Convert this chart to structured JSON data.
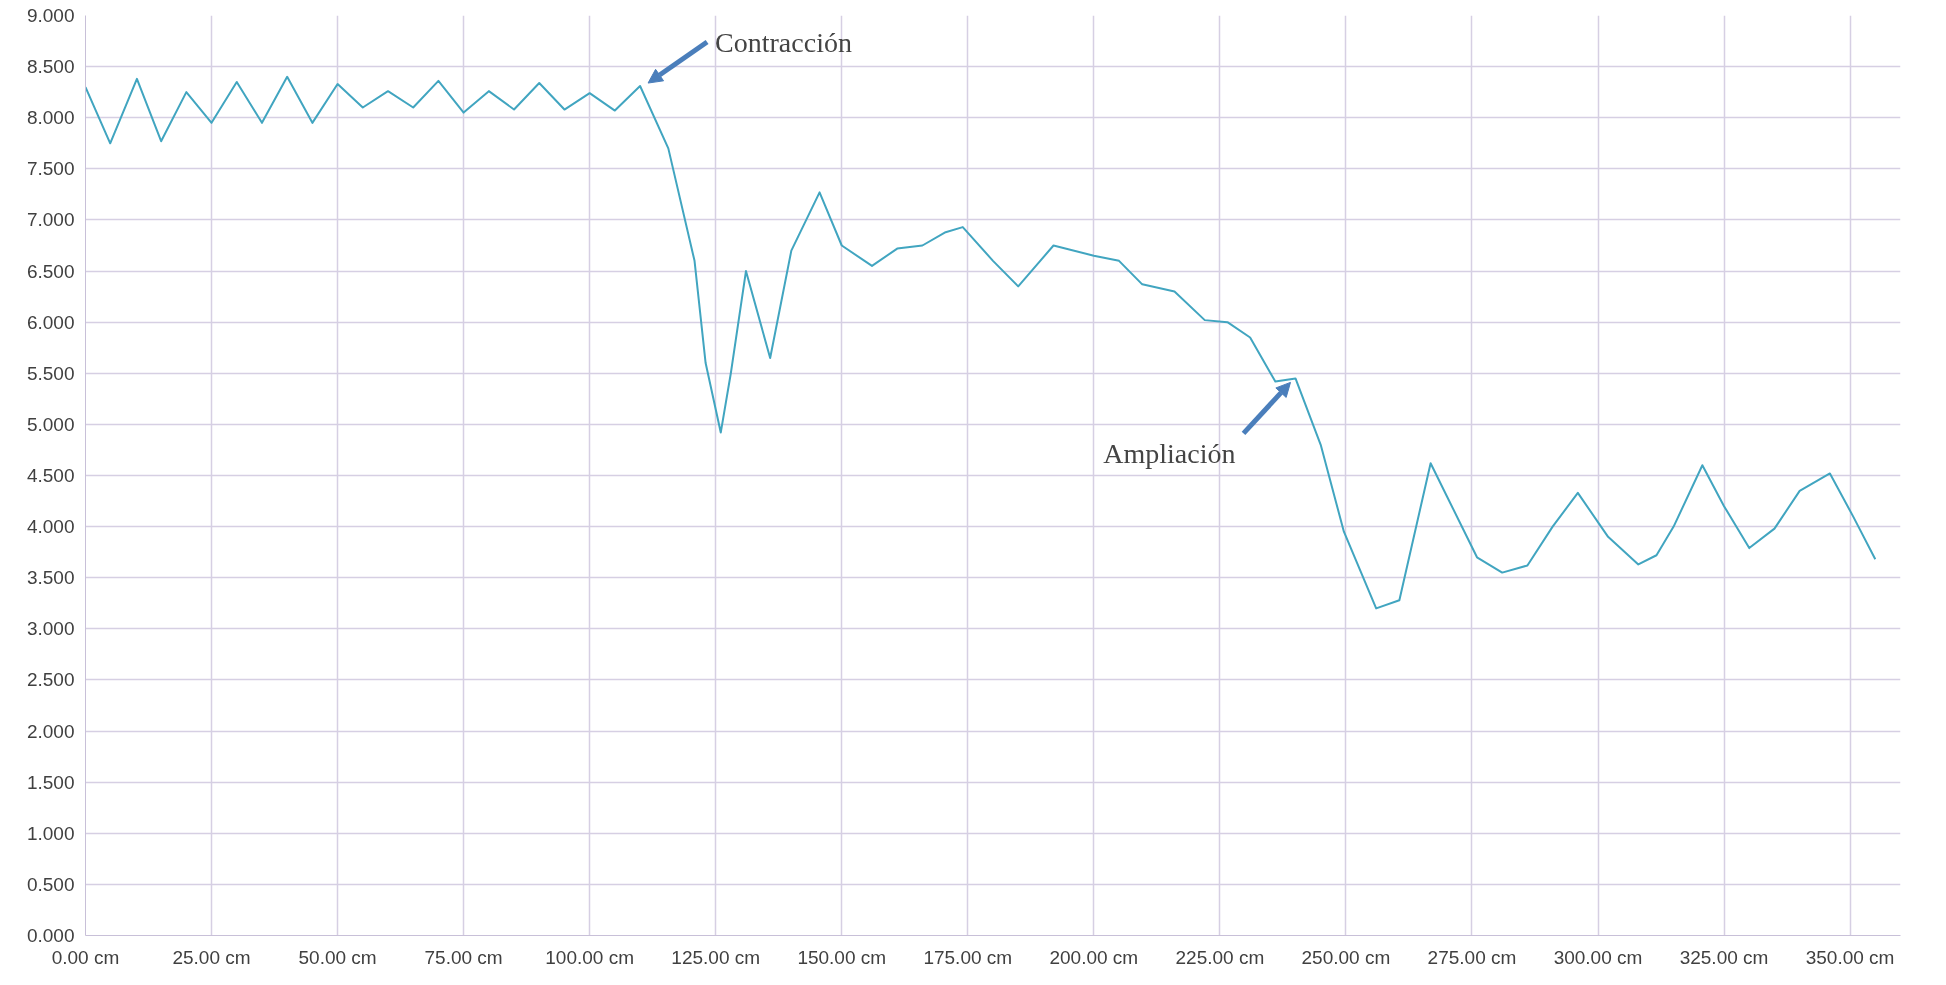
{
  "chart_data": {
    "type": "line",
    "x": [
      0,
      4.9,
      10.2,
      15,
      20,
      25,
      30,
      35,
      40,
      45,
      50,
      55,
      60,
      65,
      70,
      75,
      80,
      85,
      90,
      95,
      100,
      105,
      110,
      115.6,
      120.8,
      123,
      126,
      128,
      131,
      135.8,
      140,
      145.6,
      150,
      156,
      161,
      166,
      170.6,
      174,
      180,
      185,
      192,
      200,
      205,
      209.6,
      216,
      222,
      226.5,
      231,
      236,
      240,
      245,
      249.6,
      256,
      260.6,
      266.8,
      270,
      276,
      281,
      286,
      291,
      296,
      302,
      308,
      311.6,
      315,
      320.7,
      325,
      330,
      335,
      340,
      346,
      350.6,
      355
    ],
    "series": [
      {
        "color": "#41a5c0",
        "values": [
          8.3,
          7.75,
          8.38,
          7.77,
          8.25,
          7.95,
          8.35,
          7.95,
          8.4,
          7.95,
          8.33,
          8.1,
          8.26,
          8.1,
          8.36,
          8.05,
          8.26,
          8.08,
          8.34,
          8.08,
          8.24,
          8.07,
          8.31,
          7.7,
          6.6,
          5.6,
          4.92,
          5.5,
          6.5,
          5.65,
          6.7,
          7.27,
          6.75,
          6.55,
          6.72,
          6.75,
          6.88,
          6.93,
          6.6,
          6.35,
          6.75,
          6.65,
          6.6,
          6.37,
          6.3,
          6.02,
          6.0,
          5.85,
          5.42,
          5.45,
          4.8,
          3.95,
          3.2,
          3.28,
          4.62,
          4.3,
          3.7,
          3.55,
          3.62,
          4.0,
          4.33,
          3.9,
          3.63,
          3.72,
          4.0,
          4.6,
          4.2,
          3.79,
          3.98,
          4.35,
          4.52,
          4.1,
          3.68
        ]
      }
    ],
    "xlim": [
      0,
      360
    ],
    "xticks": [
      {
        "value": 0,
        "label": "0.00 cm"
      },
      {
        "value": 25,
        "label": "25.00 cm"
      },
      {
        "value": 50,
        "label": "50.00 cm"
      },
      {
        "value": 75,
        "label": "75.00 cm"
      },
      {
        "value": 100,
        "label": "100.00 cm"
      },
      {
        "value": 125,
        "label": "125.00 cm"
      },
      {
        "value": 150,
        "label": "150.00 cm"
      },
      {
        "value": 175,
        "label": "175.00 cm"
      },
      {
        "value": 200,
        "label": "200.00 cm"
      },
      {
        "value": 225,
        "label": "225.00 cm"
      },
      {
        "value": 250,
        "label": "250.00 cm"
      },
      {
        "value": 275,
        "label": "275.00 cm"
      },
      {
        "value": 300,
        "label": "300.00 cm"
      },
      {
        "value": 325,
        "label": "325.00 cm"
      },
      {
        "value": 350,
        "label": "350.00 cm"
      }
    ],
    "ylim": [
      0,
      9
    ],
    "yticks": [
      {
        "value": 0,
        "label": "0.000"
      },
      {
        "value": 0.5,
        "label": "0.500"
      },
      {
        "value": 1,
        "label": "1.000"
      },
      {
        "value": 1.5,
        "label": "1.500"
      },
      {
        "value": 2,
        "label": "2.000"
      },
      {
        "value": 2.5,
        "label": "2.500"
      },
      {
        "value": 3,
        "label": "3.000"
      },
      {
        "value": 3.5,
        "label": "3.500"
      },
      {
        "value": 4,
        "label": "4.000"
      },
      {
        "value": 4.5,
        "label": "4.500"
      },
      {
        "value": 5,
        "label": "5.000"
      },
      {
        "value": 5.5,
        "label": "5.500"
      },
      {
        "value": 6,
        "label": "6.000"
      },
      {
        "value": 6.5,
        "label": "6.500"
      },
      {
        "value": 7,
        "label": "7.000"
      },
      {
        "value": 7.5,
        "label": "7.500"
      },
      {
        "value": 8,
        "label": "8.000"
      },
      {
        "value": 8.5,
        "label": "8.500"
      },
      {
        "value": 9,
        "label": "9.000"
      }
    ],
    "grid": true,
    "annotations": [
      {
        "text": "Contracción",
        "x": 110,
        "y": 8.3
      },
      {
        "text": "Ampliación",
        "x": 240,
        "y": 5.45
      }
    ]
  }
}
